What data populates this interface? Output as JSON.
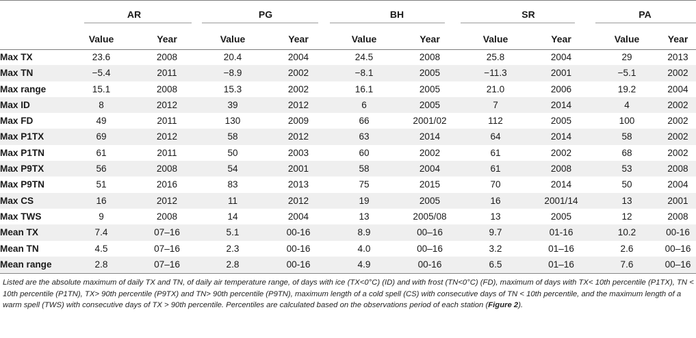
{
  "groups": [
    "AR",
    "PG",
    "BH",
    "SR",
    "PA"
  ],
  "subheaders": [
    "Value",
    "Year"
  ],
  "rows": [
    {
      "label": "Max TX",
      "cells": [
        "23.6",
        "2008",
        "20.4",
        "2004",
        "24.5",
        "2008",
        "25.8",
        "2004",
        "29",
        "2013"
      ]
    },
    {
      "label": "Max TN",
      "cells": [
        "−5.4",
        "2011",
        "−8.9",
        "2002",
        "−8.1",
        "2005",
        "−11.3",
        "2001",
        "−5.1",
        "2002"
      ]
    },
    {
      "label": "Max range",
      "cells": [
        "15.1",
        "2008",
        "15.3",
        "2002",
        "16.1",
        "2005",
        "21.0",
        "2006",
        "19.2",
        "2004"
      ]
    },
    {
      "label": "Max ID",
      "cells": [
        "8",
        "2012",
        "39",
        "2012",
        "6",
        "2005",
        "7",
        "2014",
        "4",
        "2002"
      ]
    },
    {
      "label": "Max FD",
      "cells": [
        "49",
        "2011",
        "130",
        "2009",
        "66",
        "2001/02",
        "112",
        "2005",
        "100",
        "2002"
      ]
    },
    {
      "label": "Max P1TX",
      "cells": [
        "69",
        "2012",
        "58",
        "2012",
        "63",
        "2014",
        "64",
        "2014",
        "58",
        "2002"
      ]
    },
    {
      "label": "Max P1TN",
      "cells": [
        "61",
        "2011",
        "50",
        "2003",
        "60",
        "2002",
        "61",
        "2002",
        "68",
        "2002"
      ]
    },
    {
      "label": "Max P9TX",
      "cells": [
        "56",
        "2008",
        "54",
        "2001",
        "58",
        "2004",
        "61",
        "2008",
        "53",
        "2008"
      ]
    },
    {
      "label": "Max P9TN",
      "cells": [
        "51",
        "2016",
        "83",
        "2013",
        "75",
        "2015",
        "70",
        "2014",
        "50",
        "2004"
      ]
    },
    {
      "label": "Max CS",
      "cells": [
        "16",
        "2012",
        "11",
        "2012",
        "19",
        "2005",
        "16",
        "2001/14",
        "13",
        "2001"
      ]
    },
    {
      "label": "Max TWS",
      "cells": [
        "9",
        "2008",
        "14",
        "2004",
        "13",
        "2005/08",
        "13",
        "2005",
        "12",
        "2008"
      ]
    },
    {
      "label": "Mean TX",
      "cells": [
        "7.4",
        "07–16",
        "5.1",
        "00-16",
        "8.9",
        "00–16",
        "9.7",
        "01-16",
        "10.2",
        "00-16"
      ]
    },
    {
      "label": "Mean TN",
      "cells": [
        "4.5",
        "07–16",
        "2.3",
        "00-16",
        "4.0",
        "00–16",
        "3.2",
        "01–16",
        "2.6",
        "00–16"
      ]
    },
    {
      "label": "Mean range",
      "cells": [
        "2.8",
        "07–16",
        "2.8",
        "00-16",
        "4.9",
        "00-16",
        "6.5",
        "01–16",
        "7.6",
        "00–16"
      ]
    }
  ],
  "footnote": {
    "text": "Listed are the absolute maximum of daily TX and TN, of daily air temperature range, of days with ice (TX<0°C) (ID) and with frost (TN<0°C) (FD), maximum of days with TX< 10th percentile (P1TX), TN < 10th percentile (P1TN), TX> 90th percentile (P9TX) and TN> 90th percentile (P9TN), maximum length of a cold spell (CS) with consecutive days of TN < 10th percentile, and the maximum length of a warm spell (TWS) with consecutive days of TX > 90th percentile. Percentiles are calculated based on the observations period of each station (",
    "ref": "Figure 2",
    "tail": ")."
  }
}
